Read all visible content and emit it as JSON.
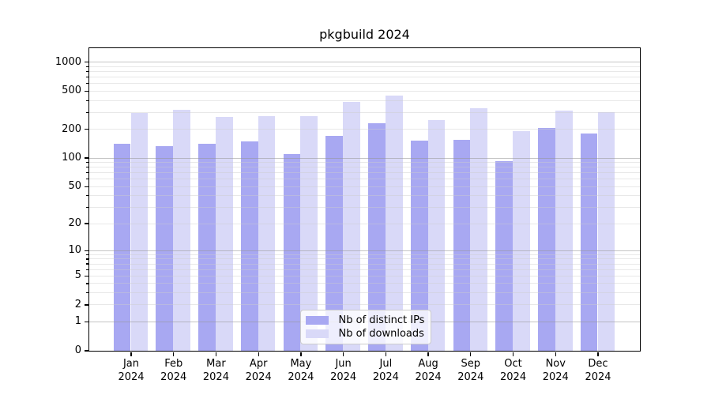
{
  "chart_data": {
    "type": "bar",
    "title": "pkgbuild 2024",
    "categories": [
      "Jan",
      "Feb",
      "Mar",
      "Apr",
      "May",
      "Jun",
      "Jul",
      "Aug",
      "Sep",
      "Oct",
      "Nov",
      "Dec"
    ],
    "year_label": "2024",
    "series": [
      {
        "name": "Nb of distinct IPs",
        "color": "#a8a8f2",
        "values": [
          141,
          132,
          141,
          148,
          110,
          168,
          230,
          151,
          154,
          92,
          206,
          178
        ]
      },
      {
        "name": "Nb of downloads",
        "color": "#d9d9f8",
        "values": [
          291,
          318,
          267,
          273,
          270,
          383,
          448,
          246,
          330,
          188,
          312,
          297
        ]
      }
    ],
    "yscale": "log1p",
    "yticks": [
      0,
      1,
      2,
      5,
      10,
      20,
      50,
      100,
      200,
      500,
      1000
    ],
    "ylim": [
      0,
      1400
    ],
    "xlabel": "",
    "ylabel": "",
    "grid": true,
    "legend_position": "lower center"
  }
}
